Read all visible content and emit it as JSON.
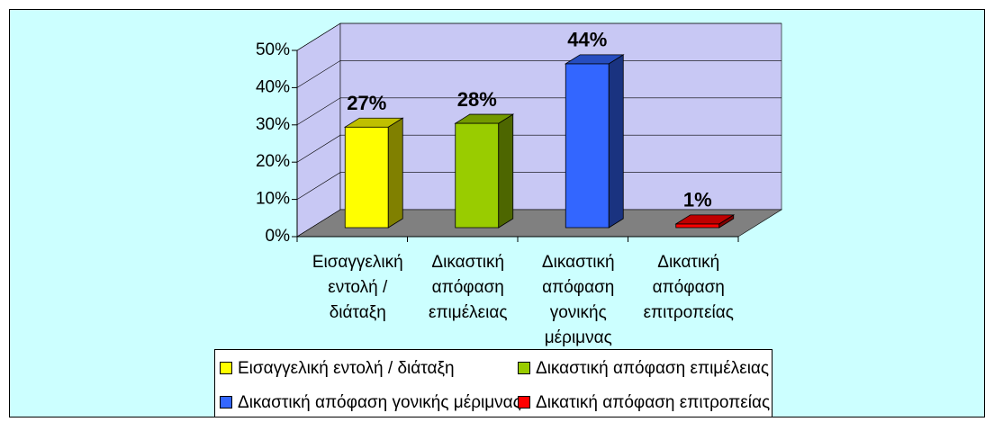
{
  "chart_data": {
    "type": "bar3d",
    "categories": [
      "Εισαγγελική εντολή / διάταξη",
      "Δικαστική απόφαση επιμέλειας",
      "Δικαστική απόφαση γονικής μέριμνας",
      "Δικατική απόφαση επιτροπείας"
    ],
    "values": [
      27,
      28,
      44,
      1
    ],
    "value_labels": [
      "27%",
      "28%",
      "44%",
      "1%"
    ],
    "colors": [
      "#ffff00",
      "#99cc00",
      "#3366ff",
      "#ff0000"
    ],
    "ylim": [
      0,
      50
    ],
    "yticks": [
      {
        "value": 0,
        "label": "0%"
      },
      {
        "value": 10,
        "label": "10%"
      },
      {
        "value": 20,
        "label": "20%"
      },
      {
        "value": 30,
        "label": "30%"
      },
      {
        "value": 40,
        "label": "40%"
      },
      {
        "value": 50,
        "label": "50%"
      }
    ],
    "grid": true,
    "legend": "bottom"
  }
}
